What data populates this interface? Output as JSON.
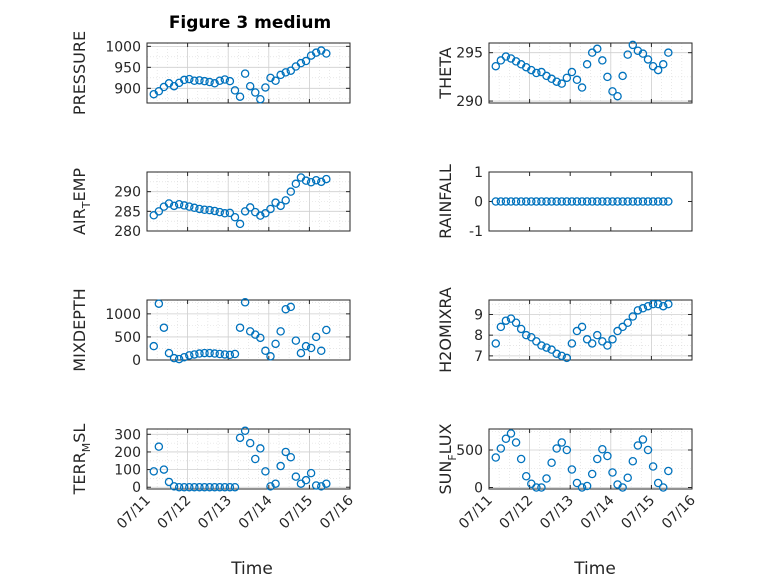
{
  "figure": {
    "title": "Figure 3 medium"
  },
  "colors": {
    "marker": "#0072BD",
    "axis": "#262626",
    "grid": "#d9d9d9"
  },
  "chart_data": [
    {
      "type": "scatter",
      "ylabel": "PRESSURE",
      "ylim": [
        865,
        1008
      ],
      "yticks": [
        900,
        950,
        1000
      ],
      "grid": true,
      "x": [
        "07/11 04:00",
        "07/11 07:00",
        "07/11 10:00",
        "07/11 13:00",
        "07/11 16:00",
        "07/11 19:00",
        "07/11 22:00",
        "07/12 01:00",
        "07/12 04:00",
        "07/12 07:00",
        "07/12 10:00",
        "07/12 13:00",
        "07/12 16:00",
        "07/12 19:00",
        "07/12 22:00",
        "07/13 01:00",
        "07/13 04:00",
        "07/13 07:00",
        "07/13 10:00",
        "07/13 13:00",
        "07/13 16:00",
        "07/13 19:00",
        "07/13 22:00",
        "07/14 01:00",
        "07/14 04:00",
        "07/14 07:00",
        "07/14 10:00",
        "07/14 13:00",
        "07/14 16:00",
        "07/14 19:00",
        "07/14 22:00",
        "07/15 01:00",
        "07/15 04:00",
        "07/15 07:00",
        "07/15 10:00"
      ],
      "y": [
        886,
        893,
        903,
        912,
        905,
        913,
        920,
        922,
        918,
        919,
        917,
        915,
        912,
        918,
        921,
        917,
        895,
        880,
        935,
        905,
        890,
        874,
        902,
        925,
        918,
        932,
        938,
        942,
        952,
        960,
        965,
        978,
        985,
        990,
        983
      ]
    },
    {
      "type": "scatter",
      "ylabel": "THETA",
      "ylim": [
        289.8,
        296
      ],
      "yticks": [
        290,
        295
      ],
      "grid": true,
      "x": [
        "07/11 04:00",
        "07/11 07:00",
        "07/11 10:00",
        "07/11 13:00",
        "07/11 16:00",
        "07/11 19:00",
        "07/11 22:00",
        "07/12 01:00",
        "07/12 04:00",
        "07/12 07:00",
        "07/12 10:00",
        "07/12 13:00",
        "07/12 16:00",
        "07/12 19:00",
        "07/12 22:00",
        "07/13 01:00",
        "07/13 04:00",
        "07/13 07:00",
        "07/13 10:00",
        "07/13 13:00",
        "07/13 16:00",
        "07/13 19:00",
        "07/13 22:00",
        "07/14 01:00",
        "07/14 04:00",
        "07/14 07:00",
        "07/14 10:00",
        "07/14 13:00",
        "07/14 16:00",
        "07/14 19:00",
        "07/14 22:00",
        "07/15 01:00",
        "07/15 04:00",
        "07/15 07:00",
        "07/15 10:00"
      ],
      "y": [
        293.6,
        294.2,
        294.6,
        294.4,
        294.1,
        293.8,
        293.5,
        293.2,
        292.9,
        293.0,
        292.6,
        292.3,
        292.0,
        291.8,
        292.4,
        293.0,
        292.2,
        291.4,
        293.8,
        295.0,
        295.4,
        294.2,
        292.5,
        291.0,
        290.5,
        292.6,
        294.8,
        295.8,
        295.2,
        294.9,
        294.3,
        293.6,
        293.2,
        293.8,
        295.0
      ]
    },
    {
      "type": "scatter",
      "ylabel": "AIR_TEMP",
      "ylim": [
        280,
        295
      ],
      "yticks": [
        280,
        285,
        290
      ],
      "grid": true,
      "x": [
        "07/11 04:00",
        "07/11 07:00",
        "07/11 10:00",
        "07/11 13:00",
        "07/11 16:00",
        "07/11 19:00",
        "07/11 22:00",
        "07/12 01:00",
        "07/12 04:00",
        "07/12 07:00",
        "07/12 10:00",
        "07/12 13:00",
        "07/12 16:00",
        "07/12 19:00",
        "07/12 22:00",
        "07/13 01:00",
        "07/13 04:00",
        "07/13 07:00",
        "07/13 10:00",
        "07/13 13:00",
        "07/13 16:00",
        "07/13 19:00",
        "07/13 22:00",
        "07/14 01:00",
        "07/14 04:00",
        "07/14 07:00",
        "07/14 10:00",
        "07/14 13:00",
        "07/14 16:00",
        "07/14 19:00",
        "07/14 22:00",
        "07/15 01:00",
        "07/15 04:00",
        "07/15 07:00",
        "07/15 10:00"
      ],
      "y": [
        284.0,
        285.0,
        286.2,
        287.0,
        286.4,
        286.8,
        286.5,
        286.2,
        285.9,
        285.6,
        285.4,
        285.3,
        285.1,
        284.8,
        284.5,
        284.6,
        283.5,
        281.8,
        285.0,
        286.0,
        284.8,
        283.9,
        284.5,
        285.6,
        287.2,
        286.4,
        287.8,
        290.0,
        292.0,
        293.6,
        292.8,
        292.4,
        292.9,
        292.5,
        293.2
      ]
    },
    {
      "type": "scatter",
      "ylabel": "RAINFALL",
      "ylim": [
        -1,
        1
      ],
      "yticks": [
        -1,
        0,
        1
      ],
      "grid": false,
      "x": [
        "07/11 04:00",
        "07/11 07:00",
        "07/11 10:00",
        "07/11 13:00",
        "07/11 16:00",
        "07/11 19:00",
        "07/11 22:00",
        "07/12 01:00",
        "07/12 04:00",
        "07/12 07:00",
        "07/12 10:00",
        "07/12 13:00",
        "07/12 16:00",
        "07/12 19:00",
        "07/12 22:00",
        "07/13 01:00",
        "07/13 04:00",
        "07/13 07:00",
        "07/13 10:00",
        "07/13 13:00",
        "07/13 16:00",
        "07/13 19:00",
        "07/13 22:00",
        "07/14 01:00",
        "07/14 04:00",
        "07/14 07:00",
        "07/14 10:00",
        "07/14 13:00",
        "07/14 16:00",
        "07/14 19:00",
        "07/14 22:00",
        "07/15 01:00",
        "07/15 04:00",
        "07/15 07:00",
        "07/15 10:00"
      ],
      "y": [
        0,
        0,
        0,
        0,
        0,
        0,
        0,
        0,
        0,
        0,
        0,
        0,
        0,
        0,
        0,
        0,
        0,
        0,
        0,
        0,
        0,
        0,
        0,
        0,
        0,
        0,
        0,
        0,
        0,
        0,
        0,
        0,
        0,
        0,
        0
      ]
    },
    {
      "type": "scatter",
      "ylabel": "MIXDEPTH",
      "ylim": [
        0,
        1300
      ],
      "yticks": [
        0,
        500,
        1000
      ],
      "grid": true,
      "x": [
        "07/11 04:00",
        "07/11 07:00",
        "07/11 10:00",
        "07/11 13:00",
        "07/11 16:00",
        "07/11 19:00",
        "07/11 22:00",
        "07/12 01:00",
        "07/12 04:00",
        "07/12 07:00",
        "07/12 10:00",
        "07/12 13:00",
        "07/12 16:00",
        "07/12 19:00",
        "07/12 22:00",
        "07/13 01:00",
        "07/13 04:00",
        "07/13 07:00",
        "07/13 10:00",
        "07/13 13:00",
        "07/13 16:00",
        "07/13 19:00",
        "07/13 22:00",
        "07/14 01:00",
        "07/14 04:00",
        "07/14 07:00",
        "07/14 10:00",
        "07/14 13:00",
        "07/14 16:00",
        "07/14 19:00",
        "07/14 22:00",
        "07/15 01:00",
        "07/15 04:00",
        "07/15 07:00",
        "07/15 10:00"
      ],
      "y": [
        300,
        1220,
        700,
        150,
        40,
        20,
        60,
        100,
        120,
        140,
        150,
        150,
        140,
        130,
        120,
        110,
        130,
        700,
        1250,
        620,
        550,
        480,
        200,
        80,
        350,
        620,
        1100,
        1150,
        420,
        150,
        300,
        260,
        500,
        200,
        650
      ]
    },
    {
      "type": "scatter",
      "ylabel": "H2OMIXRA",
      "ylim": [
        6.8,
        9.7
      ],
      "yticks": [
        7,
        8,
        9
      ],
      "grid": true,
      "x": [
        "07/11 04:00",
        "07/11 07:00",
        "07/11 10:00",
        "07/11 13:00",
        "07/11 16:00",
        "07/11 19:00",
        "07/11 22:00",
        "07/12 01:00",
        "07/12 04:00",
        "07/12 07:00",
        "07/12 10:00",
        "07/12 13:00",
        "07/12 16:00",
        "07/12 19:00",
        "07/12 22:00",
        "07/13 01:00",
        "07/13 04:00",
        "07/13 07:00",
        "07/13 10:00",
        "07/13 13:00",
        "07/13 16:00",
        "07/13 19:00",
        "07/13 22:00",
        "07/14 01:00",
        "07/14 04:00",
        "07/14 07:00",
        "07/14 10:00",
        "07/14 13:00",
        "07/14 16:00",
        "07/14 19:00",
        "07/14 22:00",
        "07/15 01:00",
        "07/15 04:00",
        "07/15 07:00",
        "07/15 10:00"
      ],
      "y": [
        7.6,
        8.4,
        8.7,
        8.8,
        8.6,
        8.3,
        8.0,
        7.9,
        7.7,
        7.5,
        7.4,
        7.3,
        7.1,
        7.0,
        6.9,
        7.6,
        8.2,
        8.4,
        7.8,
        7.6,
        8.0,
        7.7,
        7.5,
        7.8,
        8.2,
        8.4,
        8.6,
        8.9,
        9.2,
        9.3,
        9.4,
        9.5,
        9.5,
        9.4,
        9.5
      ]
    },
    {
      "type": "scatter",
      "ylabel": "TERR_MSL",
      "ylim": [
        -10,
        330
      ],
      "yticks": [
        0,
        100,
        200,
        300
      ],
      "grid": true,
      "x": [
        "07/11 04:00",
        "07/11 07:00",
        "07/11 10:00",
        "07/11 13:00",
        "07/11 16:00",
        "07/11 19:00",
        "07/11 22:00",
        "07/12 01:00",
        "07/12 04:00",
        "07/12 07:00",
        "07/12 10:00",
        "07/12 13:00",
        "07/12 16:00",
        "07/12 19:00",
        "07/12 22:00",
        "07/13 01:00",
        "07/13 04:00",
        "07/13 07:00",
        "07/13 10:00",
        "07/13 13:00",
        "07/13 16:00",
        "07/13 19:00",
        "07/13 22:00",
        "07/14 01:00",
        "07/14 04:00",
        "07/14 07:00",
        "07/14 10:00",
        "07/14 13:00",
        "07/14 16:00",
        "07/14 19:00",
        "07/14 22:00",
        "07/15 01:00",
        "07/15 04:00",
        "07/15 07:00",
        "07/15 10:00"
      ],
      "y": [
        90,
        230,
        100,
        30,
        5,
        0,
        0,
        0,
        0,
        0,
        0,
        0,
        0,
        0,
        0,
        0,
        0,
        280,
        320,
        250,
        160,
        220,
        90,
        5,
        20,
        120,
        200,
        170,
        60,
        20,
        40,
        80,
        10,
        5,
        20
      ]
    },
    {
      "type": "scatter",
      "ylabel": "SUN_FLUX",
      "ylim": [
        -20,
        780
      ],
      "yticks": [
        0,
        500
      ],
      "grid": true,
      "x": [
        "07/11 04:00",
        "07/11 07:00",
        "07/11 10:00",
        "07/11 13:00",
        "07/11 16:00",
        "07/11 19:00",
        "07/11 22:00",
        "07/12 01:00",
        "07/12 04:00",
        "07/12 07:00",
        "07/12 10:00",
        "07/12 13:00",
        "07/12 16:00",
        "07/12 19:00",
        "07/12 22:00",
        "07/13 01:00",
        "07/13 04:00",
        "07/13 07:00",
        "07/13 10:00",
        "07/13 13:00",
        "07/13 16:00",
        "07/13 19:00",
        "07/13 22:00",
        "07/14 01:00",
        "07/14 04:00",
        "07/14 07:00",
        "07/14 10:00",
        "07/14 13:00",
        "07/14 16:00",
        "07/14 19:00",
        "07/14 22:00",
        "07/15 01:00",
        "07/15 04:00",
        "07/15 07:00",
        "07/15 10:00"
      ],
      "y": [
        400,
        520,
        650,
        720,
        600,
        380,
        150,
        50,
        0,
        0,
        120,
        330,
        520,
        600,
        500,
        240,
        60,
        0,
        20,
        180,
        380,
        510,
        420,
        200,
        40,
        0,
        130,
        350,
        560,
        640,
        500,
        280,
        60,
        0,
        220
      ]
    }
  ],
  "x_axis": {
    "min": "07/11",
    "max": "07/16",
    "ticks": [
      "07/11",
      "07/12",
      "07/13",
      "07/14",
      "07/15",
      "07/16"
    ],
    "label": "Time"
  }
}
